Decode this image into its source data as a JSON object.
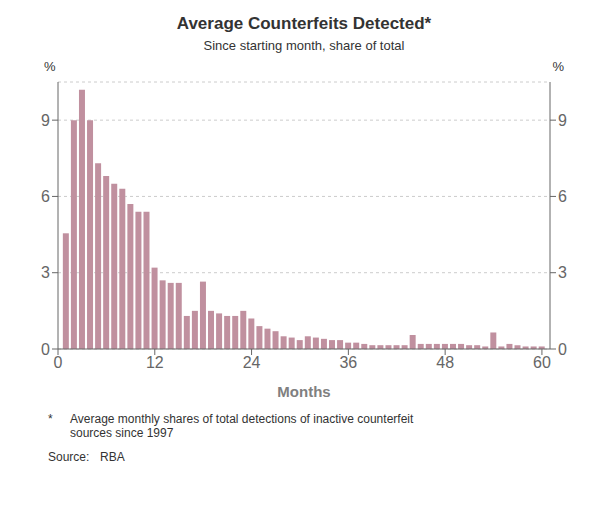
{
  "chart_data": {
    "type": "bar",
    "title": "Average Counterfeits Detected*",
    "subtitle": "Since starting month, share of total",
    "xlabel": "Months",
    "ylabel": "%",
    "y2label": "%",
    "color": "#c0909f",
    "x": [
      1,
      2,
      3,
      4,
      5,
      6,
      7,
      8,
      9,
      10,
      11,
      12,
      13,
      14,
      15,
      16,
      17,
      18,
      19,
      20,
      21,
      22,
      23,
      24,
      25,
      26,
      27,
      28,
      29,
      30,
      31,
      32,
      33,
      34,
      35,
      36,
      37,
      38,
      39,
      40,
      41,
      42,
      43,
      44,
      45,
      46,
      47,
      48,
      49,
      50,
      51,
      52,
      53,
      54,
      55,
      56,
      57,
      58,
      59,
      60
    ],
    "values": [
      4.55,
      9.0,
      10.2,
      9.0,
      7.3,
      6.8,
      6.5,
      6.3,
      5.7,
      5.4,
      5.4,
      3.2,
      2.7,
      2.6,
      2.6,
      1.3,
      1.5,
      2.65,
      1.5,
      1.4,
      1.3,
      1.3,
      1.5,
      1.2,
      0.9,
      0.8,
      0.7,
      0.5,
      0.45,
      0.35,
      0.5,
      0.45,
      0.4,
      0.35,
      0.35,
      0.25,
      0.25,
      0.2,
      0.15,
      0.15,
      0.15,
      0.15,
      0.15,
      0.55,
      0.2,
      0.2,
      0.2,
      0.2,
      0.2,
      0.2,
      0.15,
      0.15,
      0.1,
      0.65,
      0.1,
      0.2,
      0.15,
      0.1,
      0.1,
      0.1
    ],
    "xlim": [
      0,
      61
    ],
    "xticks": [
      0,
      12,
      24,
      36,
      48,
      60
    ],
    "ylim": [
      0,
      10.5
    ],
    "yticks": [
      0,
      3,
      6,
      9
    ],
    "y2lim": [
      0,
      10.5
    ],
    "y2ticks": [
      0,
      3,
      6,
      9
    ],
    "grid": true,
    "annotations": [
      "*",
      "Average monthly shares of total detections of inactive counterfeit\nsources since 1997",
      "Source:",
      "RBA"
    ]
  }
}
